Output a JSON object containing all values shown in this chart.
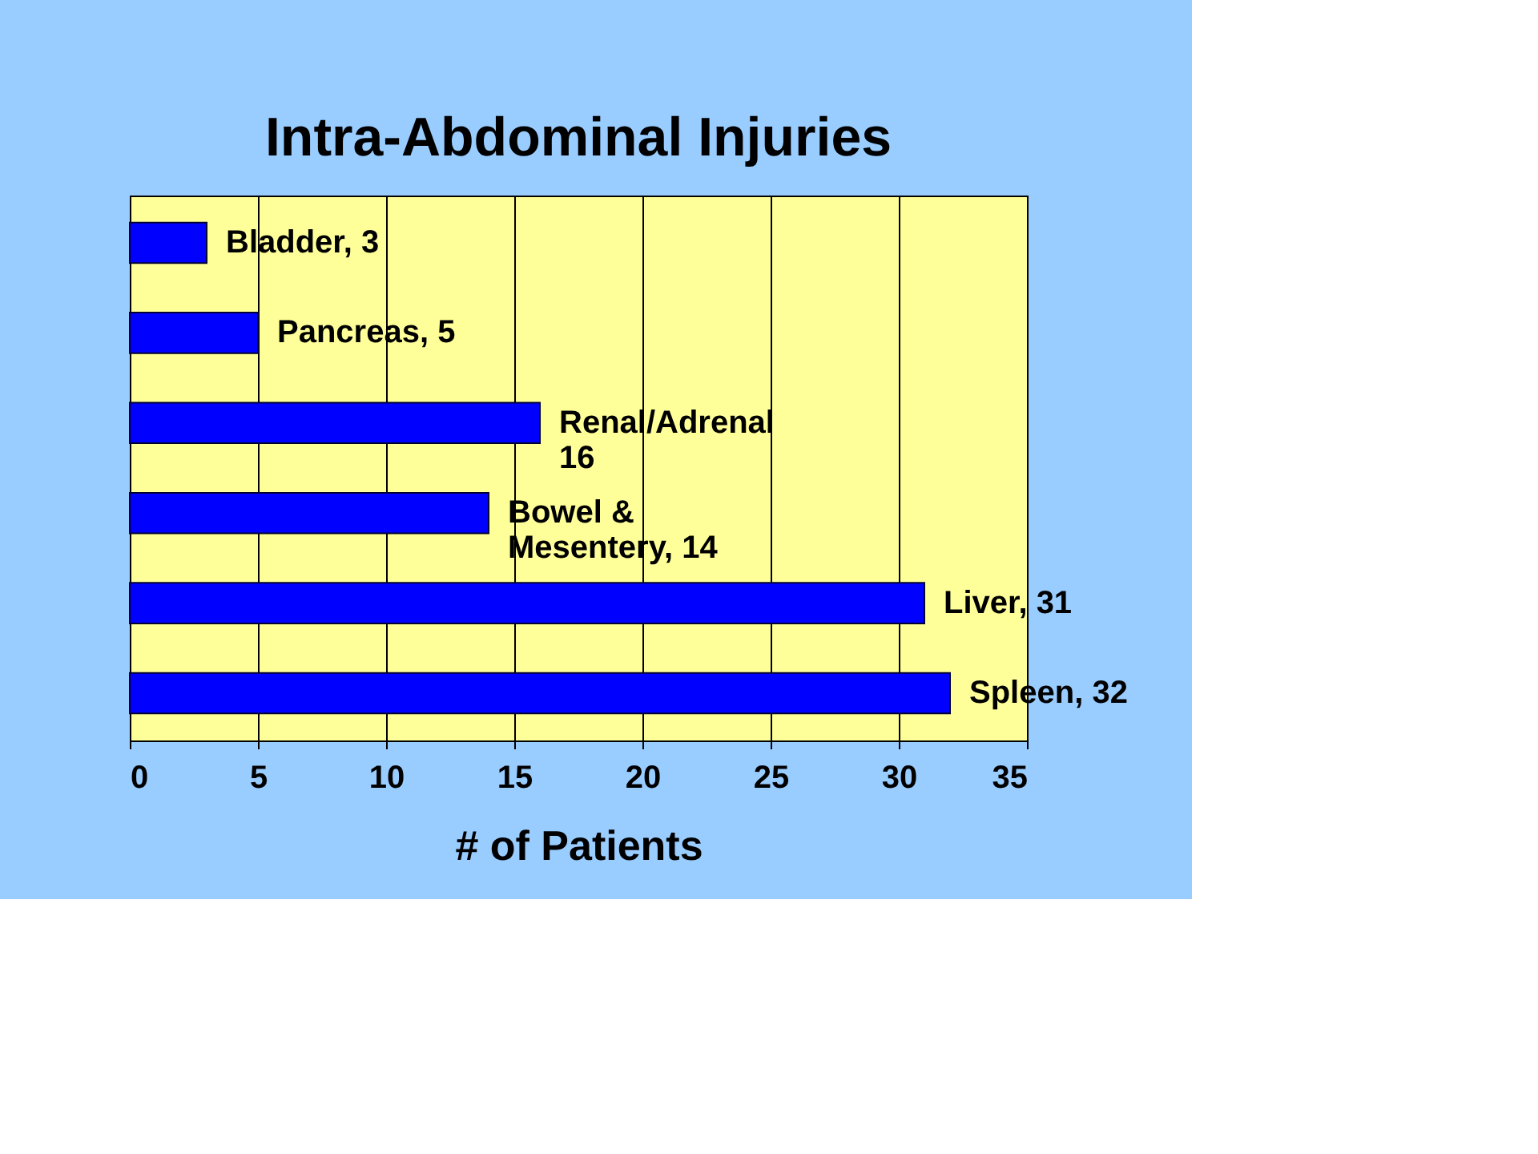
{
  "chart_data": {
    "type": "bar",
    "orientation": "horizontal",
    "title": "Intra-Abdominal Injuries",
    "xlabel": "# of Patients",
    "categories": [
      null,
      null,
      null,
      null,
      null,
      null
    ],
    "values": [
      3,
      5,
      16,
      14,
      31,
      32
    ],
    "value_labels": [
      "Bladder, 3",
      "Pancreas, 5",
      "Renal/Adrenal\n16",
      "Bowel &\nMesentery, 14",
      "Liver, 31",
      "Spleen, 32"
    ],
    "color": "#0000ff",
    "xlim": [
      0,
      35
    ],
    "xticks": [
      0,
      5,
      10,
      15,
      20,
      25,
      30,
      35
    ],
    "grid": "x"
  }
}
